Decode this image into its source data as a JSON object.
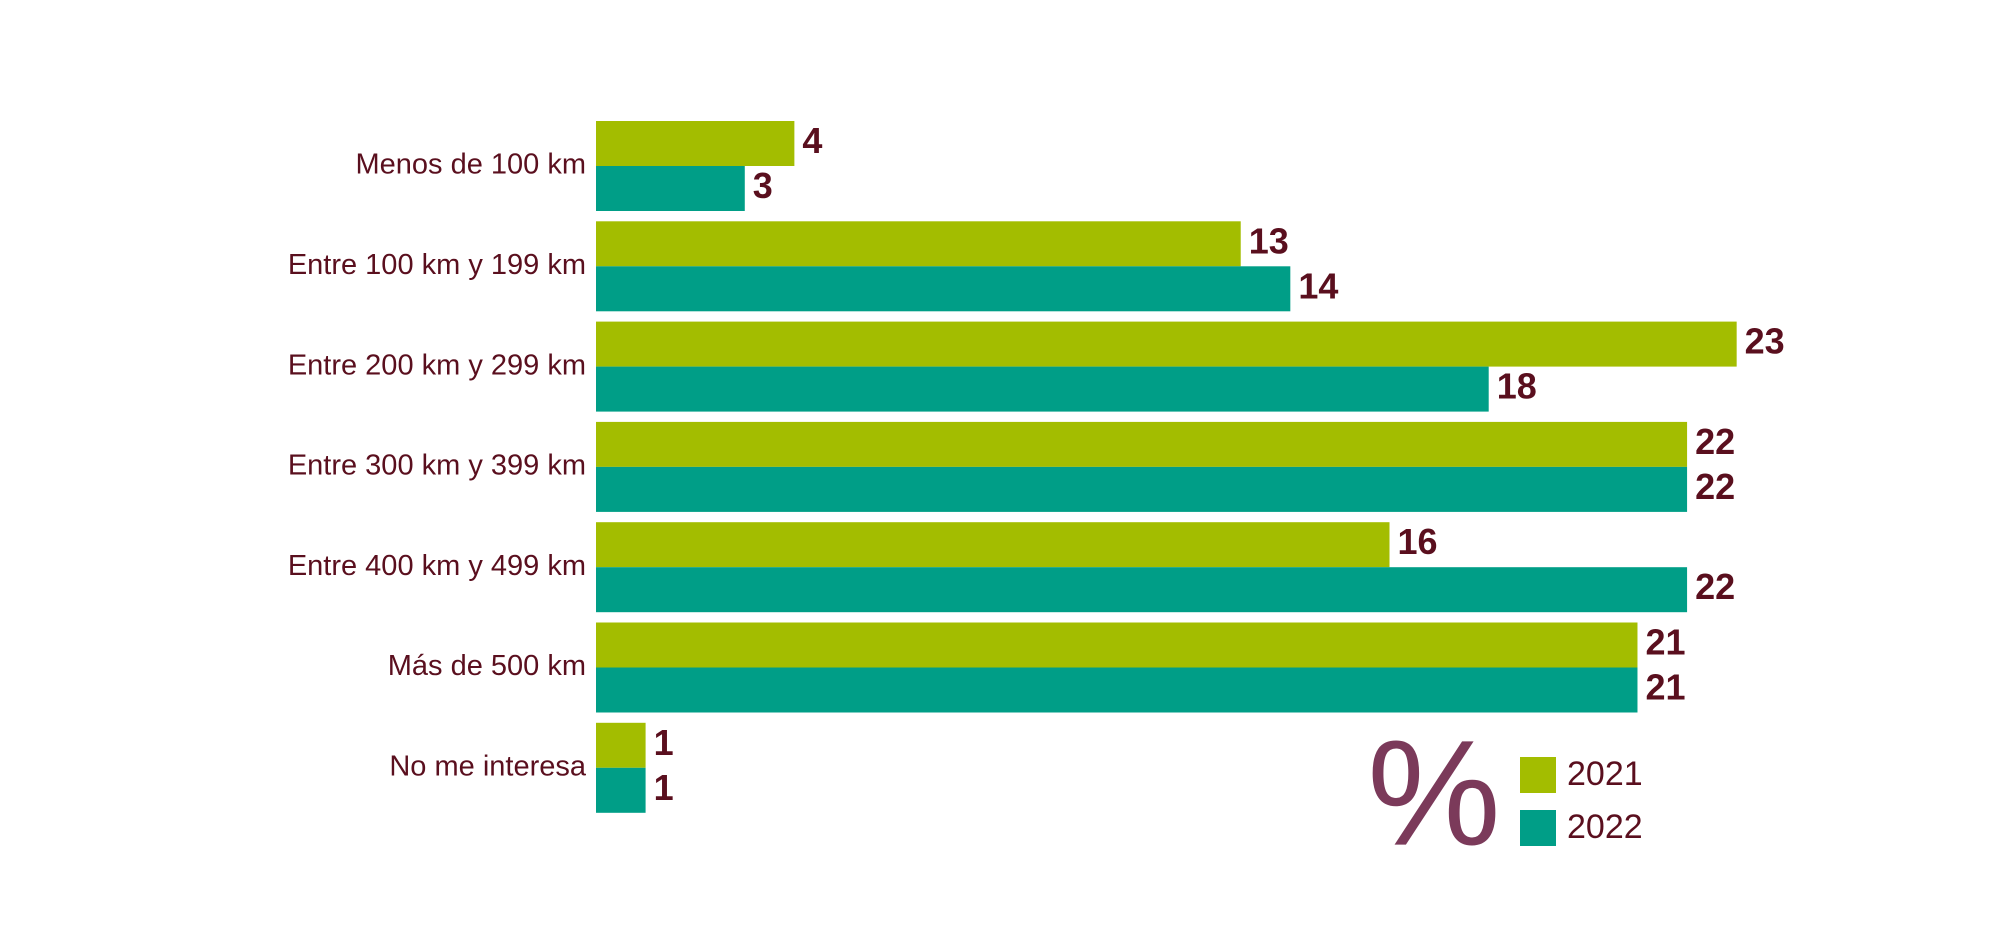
{
  "chart_data": {
    "type": "bar",
    "orientation": "horizontal",
    "categories": [
      "Menos de 100 km",
      "Entre 100 km y 199 km",
      "Entre 200 km y 299 km",
      "Entre 300 km y 399 km",
      "Entre 400 km y 499 km",
      "Más de 500 km",
      "No me interesa"
    ],
    "series": [
      {
        "name": "2021",
        "color": "#a3bd00",
        "values": [
          4,
          13,
          23,
          22,
          16,
          21,
          1
        ]
      },
      {
        "name": "2022",
        "color": "#009e87",
        "values": [
          3,
          14,
          18,
          22,
          22,
          21,
          1
        ]
      }
    ],
    "unit_symbol": "%"
  }
}
